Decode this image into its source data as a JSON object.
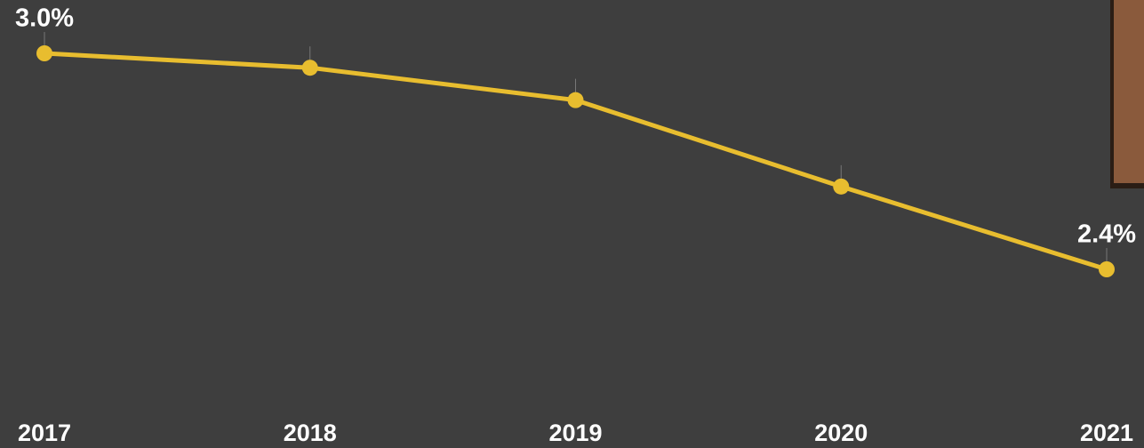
{
  "chart_data": {
    "type": "line",
    "categories": [
      "2017",
      "2018",
      "2019",
      "2020",
      "2021"
    ],
    "series": [
      {
        "color": "#e8bd2f",
        "values": [
          3.0,
          2.96,
          2.87,
          2.63,
          2.4
        ],
        "value_labels": [
          "3.0%",
          null,
          null,
          null,
          "2.4%"
        ]
      }
    ]
  }
}
